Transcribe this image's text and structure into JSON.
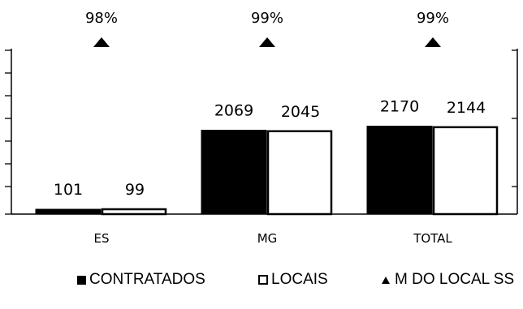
{
  "chart_data": {
    "type": "bar",
    "categories": [
      "ES",
      "MG",
      "TOTAL"
    ],
    "series": [
      {
        "name": "CONTRATADOS",
        "values": [
          101,
          2069,
          2170
        ],
        "color": "#000000"
      },
      {
        "name": "LOCAIS",
        "values": [
          99,
          2045,
          2144
        ],
        "color": "#ffffff"
      }
    ],
    "percent_series": {
      "name": "M DO LOCAL SS",
      "values": [
        "98%",
        "99%",
        "99%"
      ]
    },
    "ylim": [
      0,
      4000
    ],
    "legend_position": "bottom",
    "grid": false
  }
}
